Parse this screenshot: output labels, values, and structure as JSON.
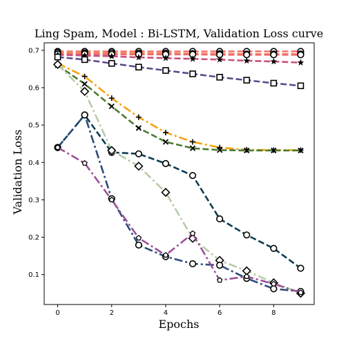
{
  "chart_data": {
    "type": "line",
    "title": "Ling Spam, Model : Bi-LSTM, Validation Loss curve",
    "xlabel": "Epochs",
    "ylabel": "Validation Loss",
    "xlim": [
      -0.5,
      9.5
    ],
    "ylim": [
      0.02,
      0.72
    ],
    "xticks": [
      0,
      2,
      4,
      6,
      8
    ],
    "yticks": [
      0.1,
      0.2,
      0.3,
      0.4,
      0.5,
      0.6,
      0.7
    ],
    "ytick_labels": [
      "0.1",
      "0.2",
      "0.3",
      "0.4",
      "0.5",
      "0.6",
      "0.7"
    ],
    "grid": false,
    "x": [
      0,
      1,
      2,
      3,
      4,
      5,
      6,
      7,
      8,
      9
    ],
    "series": [
      {
        "color": "#f4766f",
        "dash": "9,4",
        "marker": "circle",
        "values": [
          0.697,
          0.697,
          0.697,
          0.697,
          0.697,
          0.697,
          0.697,
          0.697,
          0.697,
          0.697
        ]
      },
      {
        "color": "#f08a5d",
        "dash": "9,4",
        "marker": "circle",
        "values": [
          0.694,
          0.693,
          0.693,
          0.692,
          0.692,
          0.691,
          0.691,
          0.69,
          0.69,
          0.69
        ]
      },
      {
        "color": "#f06a6a",
        "dash": "9,4",
        "marker": "circle",
        "values": [
          0.69,
          0.69,
          0.689,
          0.689,
          0.689,
          0.689,
          0.688,
          0.688,
          0.688,
          0.688
        ]
      },
      {
        "color": "#c94f7c",
        "dash": "9,4",
        "marker": "star",
        "values": [
          0.688,
          0.686,
          0.684,
          0.681,
          0.679,
          0.677,
          0.675,
          0.672,
          0.67,
          0.667
        ]
      },
      {
        "color": "#5e4b8b",
        "dash": "9,4",
        "marker": "square",
        "values": [
          0.682,
          0.675,
          0.665,
          0.655,
          0.646,
          0.637,
          0.628,
          0.62,
          0.612,
          0.605
        ]
      },
      {
        "color": "#f5a30f",
        "dash": "12,4,3,4",
        "marker": "plus",
        "values": [
          0.665,
          0.63,
          0.572,
          0.521,
          0.48,
          0.455,
          0.44,
          0.434,
          0.433,
          0.433
        ]
      },
      {
        "color": "#4a7a2e",
        "dash": "9,4",
        "marker": "x",
        "values": [
          0.66,
          0.61,
          0.55,
          0.492,
          0.455,
          0.438,
          0.433,
          0.432,
          0.432,
          0.432
        ]
      },
      {
        "color": "#0d3b52",
        "dash": "9,4",
        "marker": "circle",
        "values": [
          0.44,
          0.527,
          0.427,
          0.423,
          0.397,
          0.365,
          0.249,
          0.206,
          0.17,
          0.117
        ]
      },
      {
        "color": "#b5cca8",
        "dash": "12,4,3,4",
        "marker": "diamond",
        "values": [
          0.662,
          0.59,
          0.432,
          0.39,
          0.32,
          0.197,
          0.138,
          0.11,
          0.078,
          0.05
        ]
      },
      {
        "color": "#2c4a78",
        "dash": "12,4,3,4",
        "marker": "circle",
        "values": [
          0.44,
          0.527,
          0.303,
          0.179,
          0.148,
          0.129,
          0.125,
          0.09,
          0.062,
          0.055
        ]
      },
      {
        "color": "#9b4f96",
        "dash": "12,4,3,4",
        "marker": "pentagon",
        "values": [
          0.44,
          0.398,
          0.3,
          0.198,
          0.152,
          0.21,
          0.085,
          0.095,
          0.075,
          0.052
        ]
      }
    ]
  }
}
